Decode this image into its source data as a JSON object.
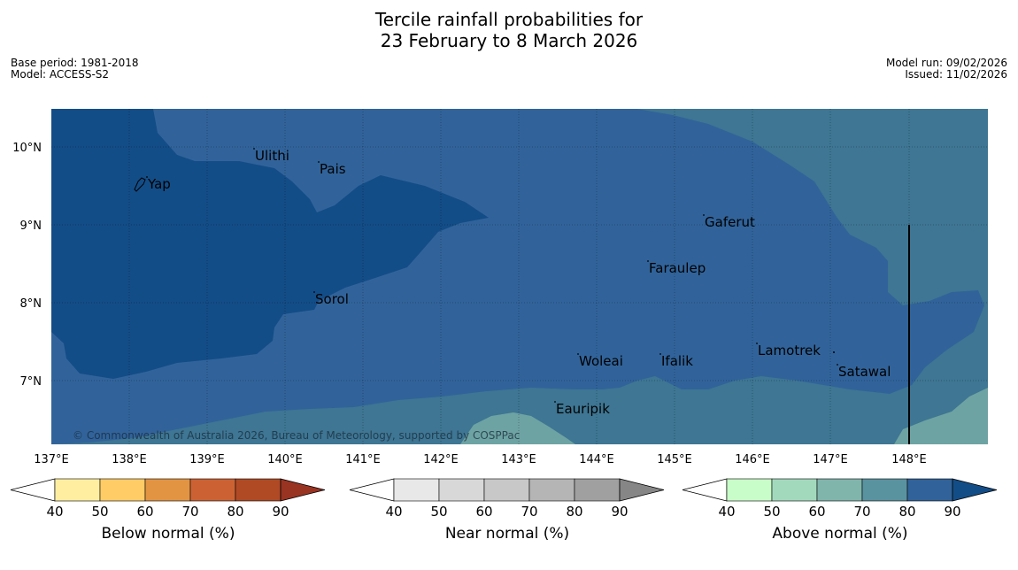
{
  "title": {
    "line1": "Tercile rainfall probabilities for",
    "line2": "23 February to 8 March 2026"
  },
  "meta": {
    "base_period": "Base period: 1981-2018",
    "model": "Model: ACCESS-S2",
    "model_run": "Model run: 09/02/2026",
    "issued": "Issued: 11/02/2026"
  },
  "map": {
    "copyright": "© Commonwealth of Australia 2026, Bureau of Meteorology, supported by COSPPac",
    "lat_labels": [
      "10°N",
      "9°N",
      "8°N",
      "7°N"
    ],
    "lon_labels": [
      "137°E",
      "138°E",
      "139°E",
      "140°E",
      "141°E",
      "142°E",
      "143°E",
      "144°E",
      "145°E",
      "146°E",
      "147°E",
      "148°E"
    ],
    "places": [
      {
        "name": "Ulithi"
      },
      {
        "name": "Pais"
      },
      {
        "name": "Yap"
      },
      {
        "name": "Gaferut"
      },
      {
        "name": "Faraulep"
      },
      {
        "name": "Sorol"
      },
      {
        "name": "Woleai"
      },
      {
        "name": "Ifalik"
      },
      {
        "name": "Lamotrek"
      },
      {
        "name": "Satawal"
      },
      {
        "name": "Eauripik"
      }
    ],
    "colors": {
      "darkest": "#134d87",
      "dark": "#31639a",
      "teal": "#3e7693",
      "light_teal": "#6ea3a3"
    }
  },
  "colorbars": [
    {
      "title": "Below normal (%)",
      "ticks": [
        "40",
        "50",
        "60",
        "70",
        "80",
        "90"
      ],
      "colors": [
        "#ffffff",
        "#ffeea0",
        "#ffcc66",
        "#e39443",
        "#cc6233",
        "#b04a25",
        "#993322"
      ]
    },
    {
      "title": "Near normal (%)",
      "ticks": [
        "40",
        "50",
        "60",
        "70",
        "80",
        "90"
      ],
      "colors": [
        "#ffffff",
        "#e8e8e8",
        "#d8d8d8",
        "#c8c8c8",
        "#b5b5b5",
        "#a0a0a0",
        "#868686"
      ]
    },
    {
      "title": "Above normal (%)",
      "ticks": [
        "40",
        "50",
        "60",
        "70",
        "80",
        "90"
      ],
      "colors": [
        "#ffffff",
        "#c8fcc8",
        "#a2d9bd",
        "#80b5ac",
        "#5a93a0",
        "#31639a",
        "#134d87"
      ]
    }
  ]
}
